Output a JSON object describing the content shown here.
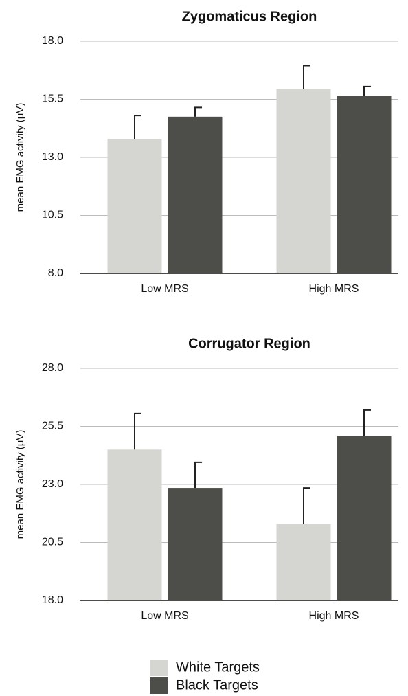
{
  "chart_data": [
    {
      "type": "bar",
      "title": "Zygomaticus Region",
      "y_label": "mean EMG activity (μV)",
      "categories": [
        "Low MRS",
        "High MRS"
      ],
      "series": [
        {
          "name": "White Targets",
          "color": "#d5d5d1",
          "values": [
            13.8,
            15.95
          ],
          "errors": [
            1.0,
            1.0
          ]
        },
        {
          "name": "Black Targets",
          "color": "#4d4e49",
          "values": [
            14.75,
            15.65
          ],
          "errors": [
            0.4,
            0.4
          ]
        }
      ],
      "ylim": [
        8,
        18
      ],
      "yticks": [
        {
          "value": 8,
          "label": "8.0"
        },
        {
          "value": 10.5,
          "label": "10.5"
        },
        {
          "value": 13,
          "label": "13.0"
        },
        {
          "value": 15.5,
          "label": "15.5"
        },
        {
          "value": 18,
          "label": "18.0"
        }
      ],
      "grid": true
    },
    {
      "type": "bar",
      "title": "Corrugator Region",
      "y_label": "mean EMG activity (μV)",
      "categories": [
        "Low MRS",
        "High MRS"
      ],
      "series": [
        {
          "color": "#d5d5d1",
          "values": [
            24.5,
            21.3
          ],
          "errors": [
            1.55,
            1.55
          ]
        },
        {
          "color": "#4d4e49",
          "values": [
            22.85,
            25.1
          ],
          "errors": [
            1.1,
            1.1
          ]
        }
      ],
      "ylim": [
        18,
        28
      ],
      "yticks": [
        {
          "value": 18,
          "label": "18.0"
        },
        {
          "value": 20.5,
          "label": "20.5"
        },
        {
          "value": 23,
          "label": "23.0"
        },
        {
          "value": 25.5,
          "label": "25.5"
        },
        {
          "value": 28,
          "label": "28.0"
        }
      ],
      "grid": true
    }
  ]
}
